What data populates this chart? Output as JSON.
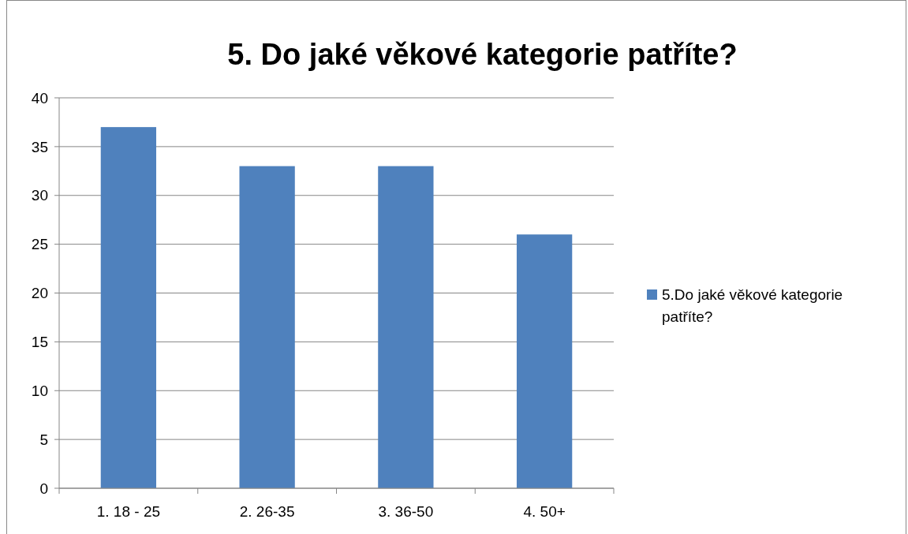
{
  "chart_data": {
    "type": "bar",
    "title": "5. Do jaké věkové kategorie patříte?",
    "categories": [
      "1. 18 - 25",
      "2. 26-35",
      "3. 36-50",
      "4. 50+"
    ],
    "series": [
      {
        "name": "5.Do jaké věkové kategorie patříte?",
        "color": "#4f81bd",
        "values": [
          37,
          33,
          33,
          26
        ]
      }
    ],
    "ylim": [
      0,
      40
    ],
    "yticks": [
      0,
      5,
      10,
      15,
      20,
      25,
      30,
      35,
      40
    ],
    "grid": "y",
    "legend": "right"
  }
}
